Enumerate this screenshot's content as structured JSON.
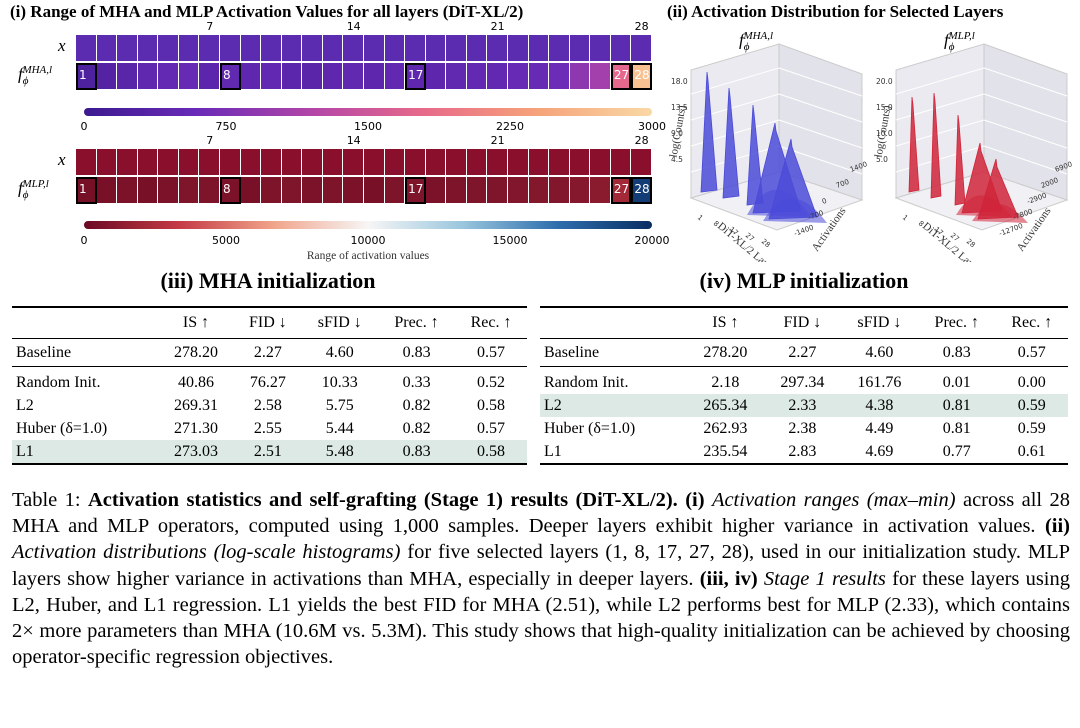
{
  "panel_i": {
    "title": "(i) Range of MHA and MLP Activation Values for all layers (DiT-XL/2)",
    "mha": {
      "x_label": "x",
      "row_label": "f",
      "row_sup": "MHA,l",
      "row_sub": "ϕ",
      "ticks_top": [
        "7",
        "14",
        "21",
        "28"
      ],
      "highlighted": [
        "1",
        "8",
        "17",
        "27",
        "28"
      ],
      "cbar_ticks": [
        "0",
        "750",
        "1500",
        "2250",
        "3000"
      ],
      "values": [
        230,
        300,
        380,
        470,
        520,
        560,
        420,
        480,
        450,
        500,
        420,
        400,
        460,
        480,
        430,
        500,
        460,
        440,
        480,
        520,
        500,
        560,
        560,
        620,
        980,
        1200,
        1900,
        2800
      ]
    },
    "mlp": {
      "x_label": "x",
      "row_label": "f",
      "row_sup": "MLP,l",
      "row_sub": "ϕ",
      "ticks_top": [
        "7",
        "14",
        "21",
        "28"
      ],
      "highlighted": [
        "1",
        "8",
        "17",
        "27",
        "28"
      ],
      "cbar_ticks": [
        "0",
        "5000",
        "10000",
        "15000",
        "20000"
      ],
      "cbar_label": "Range of activation values",
      "values": [
        500,
        600,
        700,
        600,
        700,
        900,
        800,
        700,
        600,
        800,
        900,
        700,
        800,
        700,
        600,
        800,
        900,
        700,
        800,
        900,
        900,
        1000,
        1100,
        1000,
        1200,
        1400,
        2500,
        19000
      ]
    }
  },
  "panel_ii": {
    "title": "(ii) Activation Distribution for Selected Layers",
    "left": {
      "label": "f",
      "sup": "MHA,l",
      "sub": "ϕ",
      "z_label": "log(Counts)",
      "z_ticks": [
        "18.0",
        "13.5",
        "9.0",
        "4.5"
      ],
      "layer_axis": "DiT-XL/2 Layer",
      "layer_ticks": [
        "1",
        "8",
        "17",
        "27",
        "28"
      ],
      "act_axis": "Activations",
      "act_ticks": [
        "1400",
        "700",
        "0",
        "-700",
        "-1400"
      ],
      "color": "#4b4bd8"
    },
    "right": {
      "label": "f",
      "sup": "MLP,l",
      "sub": "ϕ",
      "z_label": "log(Counts)",
      "z_ticks": [
        "20.0",
        "15.0",
        "10.0",
        "5.0"
      ],
      "layer_axis": "DiT-XL/2 Layer",
      "layer_ticks": [
        "1",
        "8",
        "17",
        "27",
        "28"
      ],
      "act_axis": "Activations",
      "act_ticks": [
        "6900",
        "2000",
        "-2900",
        "-7800",
        "-12700"
      ],
      "color": "#d0253a"
    }
  },
  "table_mha": {
    "title": "(iii) MHA initialization",
    "headers": [
      "",
      "IS ↑",
      "FID ↓",
      "sFID ↓",
      "Prec. ↑",
      "Rec. ↑"
    ],
    "baseline": [
      "Baseline",
      "278.20",
      "2.27",
      "4.60",
      "0.83",
      "0.57"
    ],
    "rows": [
      [
        "Random Init.",
        "40.86",
        "76.27",
        "10.33",
        "0.33",
        "0.52"
      ],
      [
        "L2",
        "269.31",
        "2.58",
        "5.75",
        "0.82",
        "0.58"
      ],
      [
        "Huber (δ=1.0)",
        "271.30",
        "2.55",
        "5.44",
        "0.82",
        "0.57"
      ],
      [
        "L1",
        "273.03",
        "2.51",
        "5.48",
        "0.83",
        "0.58"
      ]
    ]
  },
  "table_mlp": {
    "title": "(iv) MLP initialization",
    "headers": [
      "",
      "IS ↑",
      "FID ↓",
      "sFID ↓",
      "Prec. ↑",
      "Rec. ↑"
    ],
    "baseline": [
      "Baseline",
      "278.20",
      "2.27",
      "4.60",
      "0.83",
      "0.57"
    ],
    "rows": [
      [
        "Random Init.",
        "2.18",
        "297.34",
        "161.76",
        "0.01",
        "0.00"
      ],
      [
        "L2",
        "265.34",
        "2.33",
        "4.38",
        "0.81",
        "0.59"
      ],
      [
        "Huber (δ=1.0)",
        "262.93",
        "2.38",
        "4.49",
        "0.81",
        "0.59"
      ],
      [
        "L1",
        "235.54",
        "2.83",
        "4.69",
        "0.77",
        "0.61"
      ]
    ]
  },
  "caption": {
    "label": "Table 1:",
    "bold_title": "Activation statistics and self-grafting (Stage 1) results (DiT-XL/2).",
    "p1_b": "(i)",
    "p1_i": "Activation ranges (max–min)",
    "p1_t": "across all 28 MHA and MLP operators, computed using 1,000 samples. Deeper layers exhibit higher variance in activation values.",
    "p2_b": "(ii)",
    "p2_i": "Activation distributions (log-scale histograms)",
    "p2_t": "for five selected layers (1, 8, 17, 27, 28), used in our initialization study. MLP layers show higher variance in activations than MHA, especially in deeper layers.",
    "p3_b": "(iii, iv)",
    "p3_i": "Stage 1 results",
    "p3_t": "for these layers using L2, Huber, and L1 regression. L1 yields the best FID for MHA (2.51), while L2 performs best for MLP (2.33), which contains 2× more parameters than MHA (10.6M vs. 5.3M). This study shows that high-quality initialization can be achieved by choosing operator-specific regression objectives."
  }
}
